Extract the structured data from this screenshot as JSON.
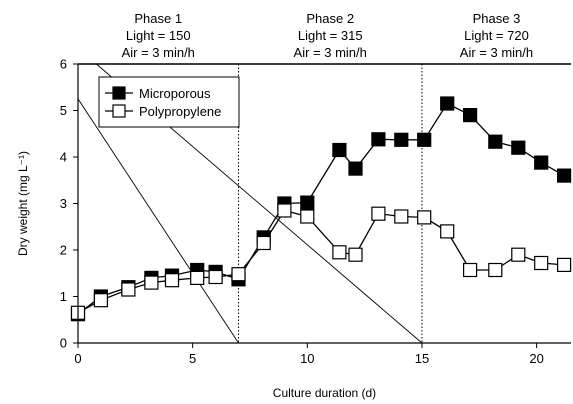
{
  "chart_data": {
    "type": "line",
    "xlabel": "Culture duration (d)",
    "ylabel": "Dry weight (mg L⁻¹)",
    "xlim": [
      0,
      21.5
    ],
    "ylim": [
      0,
      6
    ],
    "xticks": [
      0,
      5,
      10,
      15,
      20
    ],
    "yticks": [
      0,
      1,
      2,
      3,
      4,
      5,
      6
    ],
    "legend": "top-left",
    "grid": false,
    "phases": [
      {
        "title": "Phase 1",
        "light": "Light = 150",
        "air": "Air = 3 min/h",
        "start": 0,
        "end": 7
      },
      {
        "title": "Phase 2",
        "light": "Light = 315",
        "air": "Air = 3 min/h",
        "start": 7,
        "end": 15
      },
      {
        "title": "Phase 3",
        "light": "Light = 720",
        "air": "Air = 3 min/h",
        "start": 15,
        "end": 21.5
      }
    ],
    "phase_boundaries": [
      7,
      15
    ],
    "series": [
      {
        "name": "Microporous",
        "marker": "filled-square",
        "color": "#000000",
        "x": [
          0,
          1,
          2.2,
          3.2,
          4.1,
          5.2,
          6,
          7,
          8.1,
          9,
          10,
          11.4,
          12.1,
          13.1,
          14.1,
          15.1,
          16.1,
          17.1,
          18.2,
          19.2,
          20.2,
          21.2
        ],
        "y": [
          0.62,
          1.0,
          1.2,
          1.4,
          1.45,
          1.57,
          1.53,
          1.37,
          2.27,
          3.0,
          3.02,
          4.15,
          3.75,
          4.38,
          4.37,
          4.37,
          5.15,
          4.9,
          4.33,
          4.2,
          3.88,
          3.6
        ]
      },
      {
        "name": "Polypropylene",
        "marker": "open-square",
        "color": "#000000",
        "x": [
          0,
          1,
          2.2,
          3.2,
          4.1,
          5.2,
          6,
          7,
          8.1,
          9,
          10,
          11.4,
          12.1,
          13.1,
          14.1,
          15.1,
          16.1,
          17.1,
          18.2,
          19.2,
          20.2,
          21.2
        ],
        "y": [
          0.65,
          0.92,
          1.15,
          1.3,
          1.35,
          1.4,
          1.42,
          1.48,
          2.15,
          2.85,
          2.72,
          1.95,
          1.9,
          2.78,
          2.72,
          2.7,
          2.4,
          1.57,
          1.57,
          1.9,
          1.72,
          1.68
        ]
      }
    ],
    "diagonal_lines": [
      {
        "x": [
          0,
          7
        ],
        "y": [
          5.25,
          0
        ]
      },
      {
        "x": [
          0.8,
          15
        ],
        "y": [
          6,
          0
        ]
      }
    ]
  }
}
